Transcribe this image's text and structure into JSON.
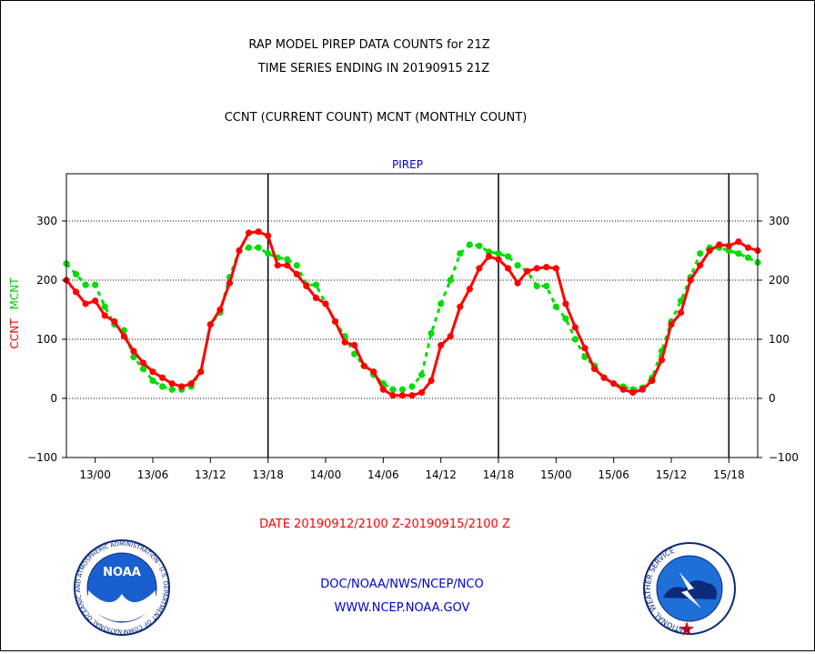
{
  "header": {
    "title_line1": "RAP MODEL PIREP DATA COUNTS for 21Z",
    "title_line2": "TIME SERIES ENDING IN 20190915 21Z",
    "subtitle": "CCNT (CURRENT COUNT) MCNT (MONTHLY COUNT)"
  },
  "footer": {
    "org_path": "DOC/NOAA/NWS/NCEP/NCO",
    "url": "WWW.NCEP.NOAA.GOV"
  },
  "logos": {
    "noaa_text": "NOAA",
    "noaa_ring_text": "NATIONAL OCEANIC AND ATMOSPHERIC ADMINISTRATION · U.S. DEPARTMENT OF COMMERCE",
    "nws_ring_text": "NATIONAL WEATHER SERVICE"
  },
  "colors": {
    "ccnt": "#ff0000",
    "mcnt": "#00dd00",
    "title": "#000000",
    "panel_title": "#0000cc",
    "footer": "#0000cc",
    "date": "#ff0000"
  },
  "chart_data": {
    "type": "line",
    "panel_title": "PIREP",
    "xlabel": "DATE 20190912/2100 Z-20190915/2100 Z",
    "ylabel_ccnt": "CCNT",
    "ylabel_mcnt": "MCNT",
    "ylim": [
      -100,
      380
    ],
    "yticks": [
      -100,
      0,
      100,
      200,
      300
    ],
    "grid_y": [
      0,
      100,
      200,
      300
    ],
    "x_start_hour": 0,
    "x_end_hour": 72,
    "xtick_hours": [
      3,
      9,
      15,
      21,
      27,
      33,
      39,
      45,
      51,
      57,
      63,
      69
    ],
    "xtick_labels": [
      "13/00",
      "13/06",
      "13/12",
      "13/18",
      "14/00",
      "14/06",
      "14/12",
      "14/18",
      "15/00",
      "15/06",
      "15/12",
      "15/18"
    ],
    "day_lines_hours": [
      21,
      45,
      69
    ],
    "x": [
      0,
      1,
      2,
      3,
      4,
      5,
      6,
      7,
      8,
      9,
      10,
      11,
      12,
      13,
      14,
      15,
      16,
      17,
      18,
      19,
      20,
      21,
      22,
      23,
      24,
      25,
      26,
      27,
      28,
      29,
      30,
      31,
      32,
      33,
      34,
      35,
      36,
      37,
      38,
      39,
      40,
      41,
      42,
      43,
      44,
      45,
      46,
      47,
      48,
      49,
      50,
      51,
      52,
      53,
      54,
      55,
      56,
      57,
      58,
      59,
      60,
      61,
      62,
      63,
      64,
      65,
      66,
      67,
      68,
      69,
      70,
      71,
      72
    ],
    "series": [
      {
        "name": "CCNT",
        "color": "#ff0000",
        "style": "solid",
        "values": [
          200,
          180,
          160,
          165,
          140,
          130,
          105,
          80,
          60,
          45,
          35,
          25,
          20,
          25,
          45,
          125,
          150,
          195,
          250,
          280,
          282,
          275,
          225,
          225,
          210,
          190,
          170,
          160,
          130,
          95,
          90,
          55,
          45,
          15,
          5,
          5,
          5,
          10,
          30,
          90,
          105,
          155,
          185,
          220,
          240,
          235,
          220,
          195,
          215,
          220,
          222,
          220,
          160,
          120,
          85,
          50,
          35,
          25,
          15,
          10,
          15,
          30,
          65,
          125,
          145,
          200,
          225,
          250,
          260,
          258,
          265,
          255,
          250
        ]
      },
      {
        "name": "MCNT",
        "color": "#00dd00",
        "style": "dashed",
        "values": [
          228,
          210,
          192,
          192,
          155,
          125,
          115,
          70,
          50,
          30,
          20,
          15,
          15,
          20,
          45,
          125,
          145,
          205,
          250,
          255,
          255,
          245,
          238,
          235,
          225,
          192,
          192,
          160,
          130,
          105,
          75,
          55,
          40,
          25,
          15,
          15,
          20,
          40,
          110,
          160,
          200,
          245,
          260,
          258,
          248,
          245,
          240,
          225,
          215,
          190,
          190,
          155,
          135,
          100,
          70,
          55,
          35,
          25,
          20,
          15,
          18,
          35,
          80,
          130,
          165,
          205,
          245,
          255,
          255,
          250,
          245,
          238,
          230
        ]
      }
    ]
  }
}
